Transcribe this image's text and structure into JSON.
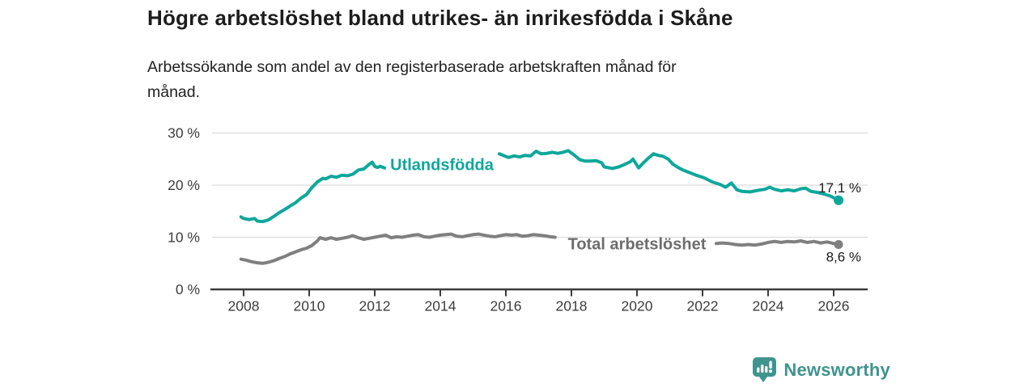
{
  "header": {
    "title": "Högre arbetslöshet bland utrikes- än inrikesfödda i Skåne",
    "subtitle_lines": [
      "Arbetssökande som andel av den registerbaserade arbetskraften månad för",
      "månad."
    ]
  },
  "footer": {
    "brand": "Newsworthy",
    "logo_icon": "bar-chart-speech-bubble"
  },
  "colors": {
    "accent_teal": "#0fa79b",
    "series_gray": "#7f7f7f",
    "gray_label": "#6d6d6d",
    "grid": "#dcdcdc",
    "axis": "#3b3b3b",
    "tick_text": "#3d3d3d",
    "value_label_text": "#1a1a1a",
    "logo_teal": "#3f948e",
    "title_text": "#1d1d1d"
  },
  "chart_data": {
    "type": "line",
    "title": "Högre arbetslöshet bland utrikes- än inrikesfödda i Skåne",
    "subtitle": "Arbetssökande som andel av den registerbaserade arbetskraften månad för månad.",
    "grid": "horizontal",
    "legend_position": "inline-labels",
    "x_axis": {
      "range": [
        2007.9,
        2027.0
      ],
      "ticks": [
        {
          "v": 2008,
          "label": "2008"
        },
        {
          "v": 2010,
          "label": "2010"
        },
        {
          "v": 2012,
          "label": "2012"
        },
        {
          "v": 2014,
          "label": "2014"
        },
        {
          "v": 2016,
          "label": "2016"
        },
        {
          "v": 2018,
          "label": "2018"
        },
        {
          "v": 2020,
          "label": "2020"
        },
        {
          "v": 2022,
          "label": "2022"
        },
        {
          "v": 2024,
          "label": "2024"
        },
        {
          "v": 2026,
          "label": "2026"
        }
      ]
    },
    "y_axis": {
      "range": [
        0,
        30
      ],
      "unit": "%",
      "ticks": [
        {
          "v": 0,
          "label": "0 %"
        },
        {
          "v": 10,
          "label": "10 %"
        },
        {
          "v": 20,
          "label": "20 %"
        },
        {
          "v": 30,
          "label": "30 %"
        }
      ]
    },
    "series": [
      {
        "name": "Utlandsfödda",
        "color": "#0fa79b",
        "line_width": 4,
        "label": {
          "text": "Utlandsfödda",
          "year": 2014.05,
          "pct": 23.9
        },
        "label_gap": [
          2012.32,
          2015.78
        ],
        "end_dot_radius": 6,
        "end_value": 17.1,
        "end_label": "17,1 %",
        "end_label_pos": "above",
        "points": [
          [
            2007.92,
            13.9
          ],
          [
            2008.0,
            13.6
          ],
          [
            2008.17,
            13.4
          ],
          [
            2008.33,
            13.6
          ],
          [
            2008.42,
            13.1
          ],
          [
            2008.58,
            13.0
          ],
          [
            2008.75,
            13.3
          ],
          [
            2008.92,
            14.0
          ],
          [
            2009.08,
            14.7
          ],
          [
            2009.25,
            15.3
          ],
          [
            2009.42,
            16.0
          ],
          [
            2009.58,
            16.6
          ],
          [
            2009.75,
            17.5
          ],
          [
            2009.92,
            18.2
          ],
          [
            2010.08,
            19.5
          ],
          [
            2010.25,
            20.6
          ],
          [
            2010.42,
            21.3
          ],
          [
            2010.5,
            21.2
          ],
          [
            2010.67,
            21.7
          ],
          [
            2010.83,
            21.5
          ],
          [
            2011.0,
            21.9
          ],
          [
            2011.17,
            21.8
          ],
          [
            2011.33,
            22.1
          ],
          [
            2011.5,
            22.9
          ],
          [
            2011.67,
            23.1
          ],
          [
            2011.83,
            24.0
          ],
          [
            2011.92,
            24.4
          ],
          [
            2012.0,
            23.6
          ],
          [
            2012.08,
            23.4
          ],
          [
            2012.17,
            23.6
          ],
          [
            2012.3,
            23.3
          ],
          [
            2015.8,
            26.0
          ],
          [
            2015.92,
            25.7
          ],
          [
            2016.08,
            25.3
          ],
          [
            2016.25,
            25.6
          ],
          [
            2016.42,
            25.4
          ],
          [
            2016.58,
            25.7
          ],
          [
            2016.75,
            25.6
          ],
          [
            2016.92,
            26.5
          ],
          [
            2017.08,
            26.0
          ],
          [
            2017.25,
            26.1
          ],
          [
            2017.42,
            26.3
          ],
          [
            2017.58,
            26.1
          ],
          [
            2017.75,
            26.3
          ],
          [
            2017.9,
            26.6
          ],
          [
            2018.08,
            25.8
          ],
          [
            2018.25,
            24.9
          ],
          [
            2018.42,
            24.6
          ],
          [
            2018.58,
            24.6
          ],
          [
            2018.75,
            24.7
          ],
          [
            2018.92,
            24.3
          ],
          [
            2019.0,
            23.5
          ],
          [
            2019.25,
            23.2
          ],
          [
            2019.45,
            23.5
          ],
          [
            2019.6,
            23.9
          ],
          [
            2019.8,
            24.5
          ],
          [
            2019.88,
            25.0
          ],
          [
            2020.05,
            23.3
          ],
          [
            2020.2,
            24.3
          ],
          [
            2020.35,
            25.2
          ],
          [
            2020.5,
            26.0
          ],
          [
            2020.65,
            25.7
          ],
          [
            2020.8,
            25.5
          ],
          [
            2020.95,
            25.0
          ],
          [
            2021.1,
            24.0
          ],
          [
            2021.25,
            23.4
          ],
          [
            2021.4,
            22.9
          ],
          [
            2021.6,
            22.4
          ],
          [
            2021.8,
            21.9
          ],
          [
            2022.05,
            21.4
          ],
          [
            2022.3,
            20.6
          ],
          [
            2022.55,
            20.1
          ],
          [
            2022.7,
            19.6
          ],
          [
            2022.88,
            20.4
          ],
          [
            2023.05,
            19.1
          ],
          [
            2023.2,
            18.8
          ],
          [
            2023.45,
            18.7
          ],
          [
            2023.7,
            19.0
          ],
          [
            2023.9,
            19.2
          ],
          [
            2024.05,
            19.6
          ],
          [
            2024.2,
            19.2
          ],
          [
            2024.4,
            18.9
          ],
          [
            2024.6,
            19.1
          ],
          [
            2024.8,
            18.9
          ],
          [
            2025.0,
            19.3
          ],
          [
            2025.15,
            19.4
          ],
          [
            2025.3,
            18.8
          ],
          [
            2025.5,
            18.6
          ],
          [
            2025.7,
            18.3
          ],
          [
            2025.9,
            17.9
          ],
          [
            2026.05,
            17.4
          ],
          [
            2026.15,
            17.1
          ]
        ]
      },
      {
        "name": "Total arbetslöshet",
        "color": "#7f7f7f",
        "line_width": 4,
        "label": {
          "text": "Total arbetslöshet",
          "year": 2020.0,
          "pct": 8.65
        },
        "label_gap": [
          2017.5,
          2022.42
        ],
        "end_dot_radius": 5.5,
        "end_value": 8.6,
        "end_label": "8,6 %",
        "end_label_pos": "below",
        "points": [
          [
            2007.92,
            5.8
          ],
          [
            2008.08,
            5.6
          ],
          [
            2008.25,
            5.3
          ],
          [
            2008.42,
            5.1
          ],
          [
            2008.58,
            5.0
          ],
          [
            2008.75,
            5.2
          ],
          [
            2008.92,
            5.5
          ],
          [
            2009.08,
            5.9
          ],
          [
            2009.25,
            6.3
          ],
          [
            2009.42,
            6.8
          ],
          [
            2009.58,
            7.2
          ],
          [
            2009.75,
            7.6
          ],
          [
            2009.92,
            7.9
          ],
          [
            2010.08,
            8.4
          ],
          [
            2010.25,
            9.3
          ],
          [
            2010.33,
            9.9
          ],
          [
            2010.5,
            9.6
          ],
          [
            2010.67,
            9.9
          ],
          [
            2010.83,
            9.6
          ],
          [
            2011.0,
            9.8
          ],
          [
            2011.17,
            10.0
          ],
          [
            2011.33,
            10.3
          ],
          [
            2011.5,
            9.9
          ],
          [
            2011.67,
            9.6
          ],
          [
            2011.83,
            9.8
          ],
          [
            2012.0,
            10.0
          ],
          [
            2012.17,
            10.2
          ],
          [
            2012.33,
            10.4
          ],
          [
            2012.5,
            9.9
          ],
          [
            2012.67,
            10.1
          ],
          [
            2012.83,
            10.0
          ],
          [
            2013.0,
            10.2
          ],
          [
            2013.17,
            10.4
          ],
          [
            2013.33,
            10.5
          ],
          [
            2013.5,
            10.1
          ],
          [
            2013.67,
            10.0
          ],
          [
            2013.83,
            10.2
          ],
          [
            2014.0,
            10.4
          ],
          [
            2014.17,
            10.5
          ],
          [
            2014.33,
            10.6
          ],
          [
            2014.5,
            10.2
          ],
          [
            2014.67,
            10.1
          ],
          [
            2014.83,
            10.3
          ],
          [
            2015.0,
            10.5
          ],
          [
            2015.17,
            10.6
          ],
          [
            2015.33,
            10.4
          ],
          [
            2015.5,
            10.2
          ],
          [
            2015.67,
            10.1
          ],
          [
            2015.83,
            10.3
          ],
          [
            2016.0,
            10.5
          ],
          [
            2016.17,
            10.4
          ],
          [
            2016.33,
            10.5
          ],
          [
            2016.5,
            10.2
          ],
          [
            2016.67,
            10.3
          ],
          [
            2016.83,
            10.5
          ],
          [
            2017.0,
            10.4
          ],
          [
            2017.17,
            10.3
          ],
          [
            2017.35,
            10.1
          ],
          [
            2017.5,
            10.0
          ],
          [
            2022.42,
            8.8
          ],
          [
            2022.6,
            8.9
          ],
          [
            2022.8,
            8.8
          ],
          [
            2023.0,
            8.6
          ],
          [
            2023.2,
            8.5
          ],
          [
            2023.4,
            8.6
          ],
          [
            2023.6,
            8.5
          ],
          [
            2023.8,
            8.7
          ],
          [
            2024.0,
            9.0
          ],
          [
            2024.2,
            9.2
          ],
          [
            2024.4,
            9.0
          ],
          [
            2024.6,
            9.2
          ],
          [
            2024.8,
            9.1
          ],
          [
            2025.0,
            9.3
          ],
          [
            2025.2,
            9.0
          ],
          [
            2025.4,
            9.2
          ],
          [
            2025.6,
            8.9
          ],
          [
            2025.8,
            9.1
          ],
          [
            2026.0,
            8.8
          ],
          [
            2026.15,
            8.6
          ]
        ]
      }
    ]
  }
}
